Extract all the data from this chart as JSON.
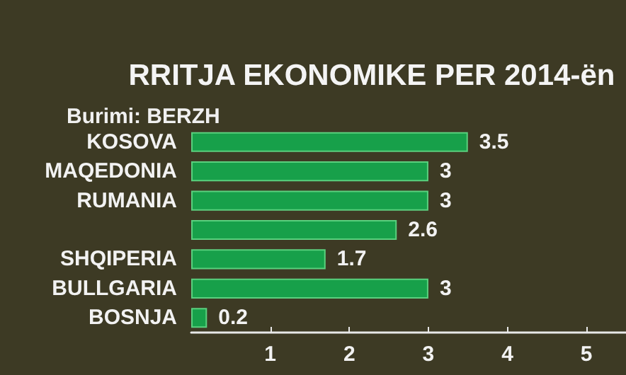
{
  "chart_data": {
    "type": "bar",
    "orientation": "horizontal",
    "title": "RRITJA EKONOMIKE PER 2014-ën",
    "subtitle": "Burimi: BERZH",
    "categories": [
      "KOSOVA",
      "MAQEDONIA",
      "RUMANIA",
      null,
      "SHQIPERIA",
      "BULLGARIA",
      "BOSNJA"
    ],
    "values": [
      3.5,
      3,
      3,
      2.6,
      1.7,
      3,
      0.2
    ],
    "data_labels": true,
    "color": "#17a04a",
    "xlim": [
      0,
      5.5
    ],
    "xticks": [
      1,
      2,
      3,
      4,
      5
    ],
    "grid": false
  }
}
